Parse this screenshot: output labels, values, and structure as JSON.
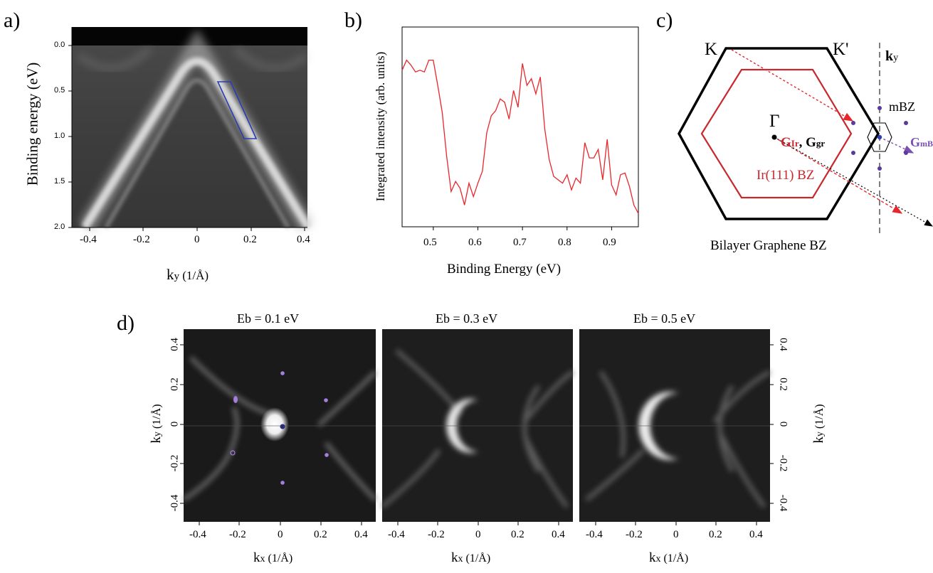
{
  "panels": {
    "a": {
      "letter": "a)",
      "ylabel": "Binding energy (eV)",
      "xlabel_main": "k",
      "xlabel_sub": "y",
      "xlabel_unit": " (1/Å)",
      "yticks": [
        "0.0",
        "0.5",
        "1.0",
        "1.5",
        "2.0"
      ],
      "xticks": [
        "-0.4",
        "-0.2",
        "0",
        "0.2",
        "0.4"
      ],
      "box_color": "#2a3fb0"
    },
    "b": {
      "letter": "b)",
      "ylabel": "Integrated intensity (arb. units)",
      "xlabel": "Binding Energy (eV)",
      "xticks": [
        "0.5",
        "0.6",
        "0.7",
        "0.8",
        "0.9"
      ],
      "line_color": "#e8262b"
    },
    "c": {
      "letter": "c)",
      "label_K": "K",
      "label_Kp": "K'",
      "label_ky_main": "k",
      "label_ky_sub": "y",
      "label_mBZ": "mBZ",
      "label_gamma": "Γ",
      "label_GIr_main": "G",
      "label_GIr_sub": "Ir",
      "label_comma": ",",
      "label_Ggr_main": "G",
      "label_Ggr_sub": "gr",
      "label_GmBZ_main": "G",
      "label_GmBZ_sub": "mBZ",
      "label_IrBZ": "Ir(111) BZ",
      "label_bilayer": "Bilayer Graphene BZ",
      "color_ir": "#c8272d",
      "color_mbz": "#7a4fb0",
      "color_mbz_dots": "#5a3a9a"
    },
    "d": {
      "letter": "d)",
      "maps": [
        {
          "title": "Eb = 0.1 eV"
        },
        {
          "title": "Eb = 0.3 eV"
        },
        {
          "title": "Eb = 0.5 eV"
        }
      ],
      "xticks": [
        "-0.4",
        "-0.2",
        "0",
        "0.2",
        "0.4"
      ],
      "yticks": [
        "0.4",
        "0.2",
        "0",
        "-0.2",
        "-0.4"
      ],
      "xlabel_main": "k",
      "xlabel_sub": "x",
      "xlabel_unit": " (1/Å)",
      "ylabel_main": "k",
      "ylabel_sub": "y",
      "ylabel_unit": " (1/Å)",
      "dot_color": "#a47fe0"
    }
  },
  "chart_data": {
    "type": "line",
    "title": "",
    "xlabel": "Binding Energy (eV)",
    "ylabel": "Integrated intensity (arb. units)",
    "xlim": [
      0.43,
      0.96
    ],
    "ylim": [
      0,
      1
    ],
    "series": [
      {
        "x": [
          0.43,
          0.44,
          0.45,
          0.46,
          0.47,
          0.48,
          0.49,
          0.5,
          0.51,
          0.52,
          0.53,
          0.54,
          0.55,
          0.56,
          0.57,
          0.58,
          0.59,
          0.6,
          0.61,
          0.62,
          0.63,
          0.64,
          0.65,
          0.66,
          0.67,
          0.68,
          0.69,
          0.7,
          0.71,
          0.72,
          0.73,
          0.74,
          0.75,
          0.76,
          0.77,
          0.78,
          0.79,
          0.8,
          0.81,
          0.82,
          0.83,
          0.84,
          0.85,
          0.86,
          0.87,
          0.88,
          0.89,
          0.9,
          0.91,
          0.92,
          0.93,
          0.94,
          0.95,
          0.96
        ],
        "values": [
          0.87,
          0.93,
          0.9,
          0.86,
          0.87,
          0.86,
          0.93,
          0.93,
          0.78,
          0.62,
          0.36,
          0.15,
          0.21,
          0.17,
          0.07,
          0.2,
          0.12,
          0.2,
          0.27,
          0.5,
          0.6,
          0.63,
          0.7,
          0.68,
          0.58,
          0.75,
          0.65,
          0.91,
          0.78,
          0.82,
          0.73,
          0.83,
          0.52,
          0.34,
          0.24,
          0.22,
          0.2,
          0.25,
          0.16,
          0.23,
          0.2,
          0.44,
          0.35,
          0.35,
          0.4,
          0.22,
          0.46,
          0.19,
          0.13,
          0.25,
          0.26,
          0.18,
          0.07,
          0.02
        ]
      }
    ]
  }
}
